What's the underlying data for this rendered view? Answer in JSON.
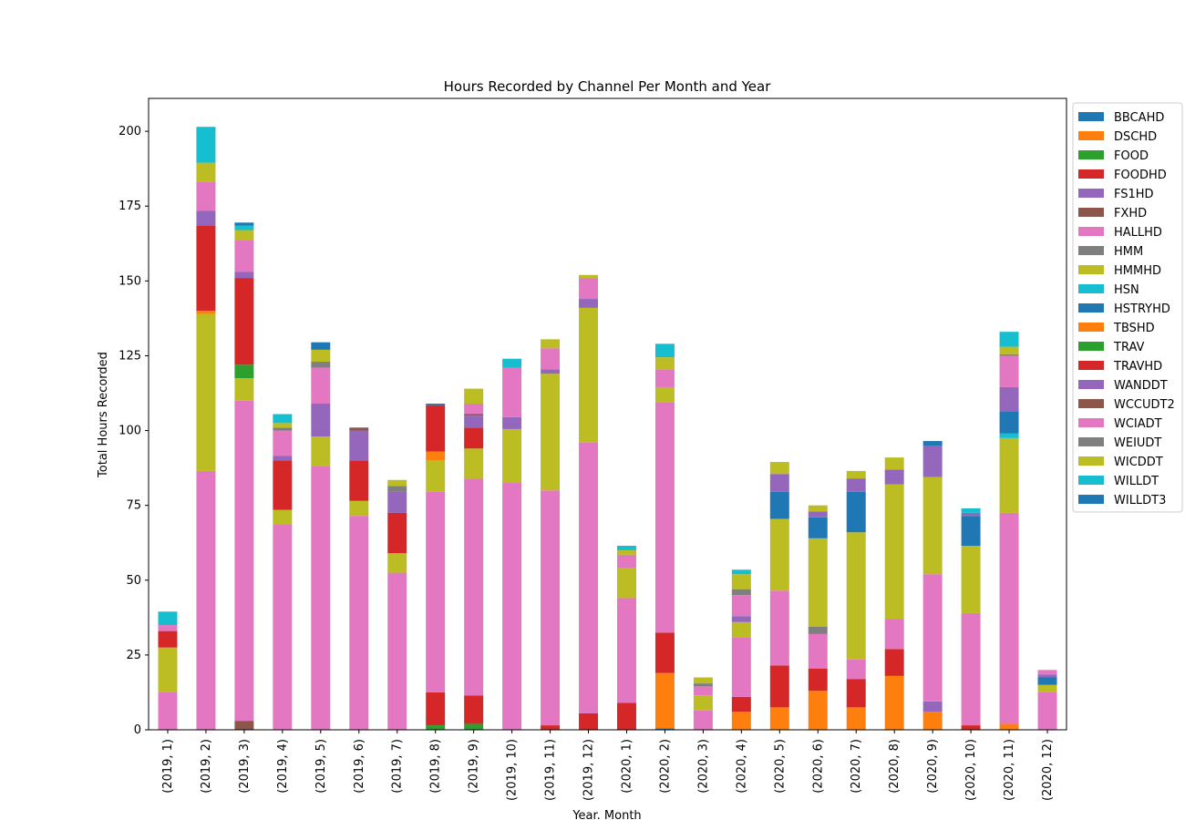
{
  "chart_data": {
    "type": "bar",
    "stacked": true,
    "title": "Hours Recorded by Channel Per Month and Year",
    "xlabel": "Year. Month",
    "ylabel": "Total Hours Recorded",
    "ylim": [
      0,
      211
    ],
    "yticks": [
      0,
      25,
      50,
      75,
      100,
      125,
      150,
      175,
      200
    ],
    "grid": false,
    "legend_position": "outside-right",
    "categories": [
      "(2019, 1)",
      "(2019, 2)",
      "(2019, 3)",
      "(2019, 4)",
      "(2019, 5)",
      "(2019, 6)",
      "(2019, 7)",
      "(2019, 8)",
      "(2019, 9)",
      "(2019, 10)",
      "(2019, 11)",
      "(2019, 12)",
      "(2020, 1)",
      "(2020, 2)",
      "(2020, 3)",
      "(2020, 4)",
      "(2020, 5)",
      "(2020, 6)",
      "(2020, 7)",
      "(2020, 8)",
      "(2020, 9)",
      "(2020, 10)",
      "(2020, 11)",
      "(2020, 12)"
    ],
    "series": [
      {
        "name": "BBCAHD",
        "color": "#1f77b4",
        "values": [
          0,
          0,
          0,
          0,
          0,
          0,
          0,
          0,
          0,
          0,
          0,
          0,
          0,
          0.5,
          0,
          0,
          0,
          0,
          0,
          0,
          0,
          0,
          0,
          0
        ]
      },
      {
        "name": "DSCHD",
        "color": "#ff7f0e",
        "values": [
          0,
          0,
          0,
          0,
          0,
          0,
          0,
          0,
          0,
          0,
          0,
          0,
          0,
          18.5,
          0,
          6,
          7.5,
          13,
          7.5,
          18,
          6,
          0,
          2,
          0
        ]
      },
      {
        "name": "FOOD",
        "color": "#2ca02c",
        "values": [
          0,
          0,
          0,
          0,
          0,
          0,
          0,
          1.5,
          2,
          0,
          0,
          0,
          0,
          0,
          0,
          0,
          0,
          0,
          0,
          0,
          0,
          0,
          0,
          0
        ]
      },
      {
        "name": "FOODHD",
        "color": "#d62728",
        "values": [
          0,
          0,
          0,
          0,
          0,
          0,
          0,
          11,
          9.5,
          0,
          1.5,
          5.5,
          9,
          13.5,
          0,
          5,
          14,
          7.5,
          9.5,
          9,
          0,
          1.5,
          0,
          0
        ]
      },
      {
        "name": "FS1HD",
        "color": "#9467bd",
        "values": [
          0,
          0,
          0,
          0,
          0,
          0,
          0,
          0,
          0,
          0,
          0,
          0,
          0,
          0,
          0,
          0,
          0,
          0,
          0,
          0,
          3.5,
          0,
          0,
          0
        ]
      },
      {
        "name": "FXHD",
        "color": "#8c564b",
        "values": [
          0,
          0,
          3,
          0,
          0,
          0,
          0,
          0,
          0,
          0,
          0,
          0,
          0,
          0,
          0,
          0,
          0,
          0,
          0,
          0,
          0,
          0,
          0,
          0
        ]
      },
      {
        "name": "HALLHD",
        "color": "#e377c2",
        "values": [
          12.5,
          86.5,
          107,
          68.5,
          88,
          71.5,
          52.5,
          67,
          72.5,
          82.5,
          78.5,
          90.5,
          35,
          77,
          6.5,
          20,
          25,
          11.5,
          6.5,
          10,
          42.5,
          37.5,
          70.5,
          12.5
        ]
      },
      {
        "name": "HMM",
        "color": "#7f7f7f",
        "values": [
          0,
          0,
          0,
          0,
          0,
          0,
          0,
          0,
          0,
          0,
          0,
          0,
          0,
          0,
          0,
          0,
          0,
          2.5,
          0,
          0,
          0,
          0,
          0,
          0
        ]
      },
      {
        "name": "HMMHD",
        "color": "#bcbd22",
        "values": [
          15,
          52.5,
          7.5,
          5,
          10,
          5,
          6.5,
          10.5,
          10,
          18,
          39,
          45,
          10,
          5,
          5,
          5,
          24,
          29.5,
          42.5,
          45,
          32.5,
          22.5,
          25,
          2.5
        ]
      },
      {
        "name": "HSN",
        "color": "#17becf",
        "values": [
          0,
          0,
          0,
          0,
          0,
          0,
          0,
          0,
          0,
          0,
          0,
          0,
          0,
          0,
          0,
          0,
          0,
          0,
          0,
          0,
          0,
          0,
          1.5,
          0
        ]
      },
      {
        "name": "HSTRYHD",
        "color": "#1f77b4",
        "values": [
          0,
          0,
          0,
          0,
          0,
          0,
          0,
          0,
          0,
          0,
          0,
          0,
          0,
          0,
          0,
          0,
          9,
          7,
          13.5,
          0,
          0,
          10,
          7.5,
          2.5
        ]
      },
      {
        "name": "TBSHD",
        "color": "#ff7f0e",
        "values": [
          0,
          1,
          0,
          0,
          0,
          0,
          0,
          3,
          0,
          0,
          0,
          0,
          0,
          0,
          0,
          0,
          0,
          0,
          0,
          0,
          0,
          0,
          0,
          0
        ]
      },
      {
        "name": "TRAV",
        "color": "#2ca02c",
        "values": [
          0,
          0,
          4.5,
          0,
          0,
          0,
          0,
          0,
          0,
          0,
          0,
          0,
          0,
          0,
          0,
          0,
          0,
          0,
          0,
          0,
          0,
          0,
          0,
          0
        ]
      },
      {
        "name": "TRAVHD",
        "color": "#d62728",
        "values": [
          5.5,
          28.5,
          29,
          16.5,
          0,
          13.5,
          13.5,
          15.5,
          7,
          0,
          0,
          0,
          0,
          0,
          0,
          0,
          0,
          0,
          0,
          0,
          0,
          0,
          0,
          0
        ]
      },
      {
        "name": "WANDDT",
        "color": "#9467bd",
        "values": [
          0,
          5,
          2,
          1.5,
          11,
          10,
          7,
          0,
          4,
          4,
          1.5,
          3,
          0,
          0,
          0,
          2,
          6,
          2,
          4.5,
          5,
          10.5,
          1,
          8,
          1
        ]
      },
      {
        "name": "WCCUDT2",
        "color": "#8c564b",
        "values": [
          0,
          0,
          0,
          0,
          0,
          1,
          0,
          0,
          0.5,
          0,
          0,
          0,
          0,
          0,
          0,
          0,
          0,
          0,
          0,
          0,
          0,
          0,
          0,
          0
        ]
      },
      {
        "name": "WCIADT",
        "color": "#e377c2",
        "values": [
          2,
          9.5,
          10.5,
          8.5,
          12,
          0,
          0,
          0,
          3.5,
          16.5,
          7,
          7,
          4.5,
          6,
          3,
          7,
          0,
          0,
          0,
          0,
          0,
          0,
          10.5,
          1.5
        ]
      },
      {
        "name": "WEIUDT",
        "color": "#7f7f7f",
        "values": [
          0,
          0,
          0,
          1,
          2,
          0,
          2,
          0,
          0,
          0,
          0,
          0,
          0,
          0,
          1,
          2,
          0,
          0,
          0,
          0,
          0,
          0,
          0.5,
          0
        ]
      },
      {
        "name": "WICDDT",
        "color": "#bcbd22",
        "values": [
          0,
          6.5,
          3.5,
          1.5,
          4,
          0,
          2,
          0,
          5,
          0,
          3,
          1,
          1.5,
          4,
          2,
          5,
          4,
          2,
          2.5,
          4,
          0,
          0,
          2.5,
          0
        ]
      },
      {
        "name": "WILLDT",
        "color": "#17becf",
        "values": [
          4.5,
          12,
          1.5,
          3,
          0,
          0,
          0,
          0,
          0,
          3,
          0,
          0,
          1.5,
          4.5,
          0,
          1.5,
          0,
          0,
          0,
          0,
          0,
          1.5,
          5,
          0
        ]
      },
      {
        "name": "WILLDT3",
        "color": "#1f77b4",
        "values": [
          0,
          0,
          1,
          0,
          2.5,
          0,
          0,
          0.5,
          0,
          0,
          0,
          0,
          0,
          0,
          0,
          0,
          0,
          0,
          0,
          0,
          1.5,
          0,
          0,
          0
        ]
      }
    ]
  }
}
